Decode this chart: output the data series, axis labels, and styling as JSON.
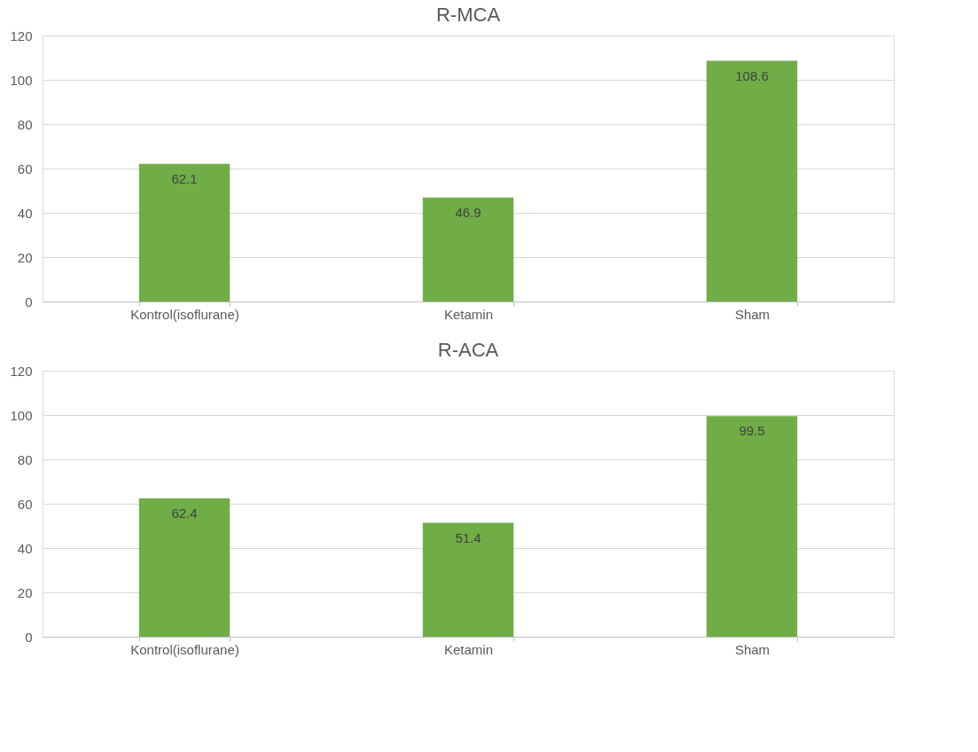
{
  "chart_data": [
    {
      "type": "bar",
      "title": "R-MCA",
      "categories": [
        "Kontrol(isoflurane)",
        "Ketamin",
        "Sham"
      ],
      "values": [
        62.1,
        46.9,
        108.6
      ],
      "color": "#70ad47",
      "ylim": [
        0,
        120
      ],
      "yticks": [
        0,
        20,
        40,
        60,
        80,
        100,
        120
      ],
      "grid": "y",
      "data_labels": true
    },
    {
      "type": "bar",
      "title": "R-ACA",
      "categories": [
        "Kontrol(isoflurane)",
        "Ketamin",
        "Sham"
      ],
      "values": [
        62.4,
        51.4,
        99.5
      ],
      "color": "#70ad47",
      "ylim": [
        0,
        120
      ],
      "yticks": [
        0,
        20,
        40,
        60,
        80,
        100,
        120
      ],
      "grid": "y",
      "data_labels": true
    }
  ]
}
